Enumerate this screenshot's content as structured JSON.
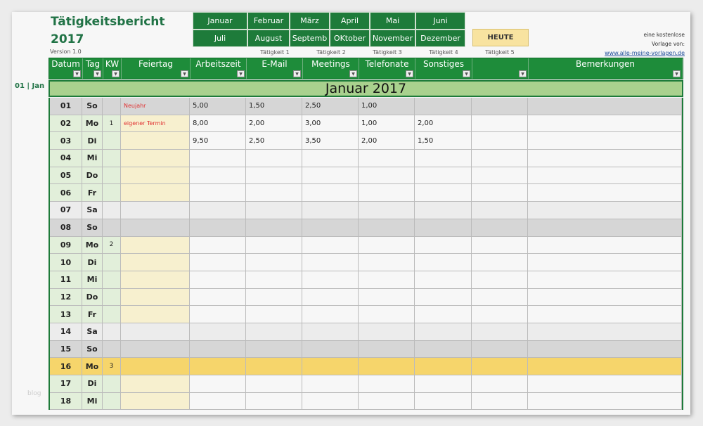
{
  "header": {
    "title_line1": "Tätigkeitsbericht",
    "title_line2": "2017",
    "version": "Version 1.0"
  },
  "months_row1": [
    "Januar",
    "Februar",
    "März",
    "April",
    "Mai",
    "Juni"
  ],
  "months_row2": [
    "Juli",
    "August",
    "Septemb",
    "OKtober",
    "November",
    "Dezember"
  ],
  "today_button": "HEUTE",
  "activity_labels": [
    "Tätigkeit 1",
    "Tätigkeit 2",
    "Tätigkeit 3",
    "Tätigkeit 4",
    "Tätigkeit 5"
  ],
  "promo": {
    "line1": "eine kostenlose",
    "line2": "Vorlage von:",
    "link": "www.alle-meine-vorlagen.de"
  },
  "columns": [
    "Datum",
    "Tag",
    "KW",
    "Feiertag",
    "Arbeitszeit",
    "E-Mail",
    "Meetings",
    "Telefonate",
    "Sonstiges",
    "",
    "Bemerkungen"
  ],
  "month_band": "Januar 2017",
  "month_side_label": "01 | Jan",
  "watermark": "blog",
  "colors": {
    "accent": "#1e7b3a",
    "band": "#a9d18e",
    "today": "#f6d56b",
    "weekday_date": "#e2efda",
    "holiday_col": "#f7f0cf",
    "sunday": "#d6d6d6",
    "saturday": "#ececec"
  },
  "rows": [
    {
      "datum": "01",
      "tag": "So",
      "kw": "",
      "feiertag": "Neujahr",
      "values": [
        "5,00",
        "1,50",
        "2,50",
        "1,00",
        "",
        ""
      ],
      "bem": "",
      "type": "sun"
    },
    {
      "datum": "02",
      "tag": "Mo",
      "kw": "1",
      "feiertag": "eigener Termin",
      "values": [
        "8,00",
        "2,00",
        "3,00",
        "1,00",
        "2,00",
        ""
      ],
      "bem": "",
      "type": "wd"
    },
    {
      "datum": "03",
      "tag": "Di",
      "kw": "",
      "feiertag": "",
      "values": [
        "9,50",
        "2,50",
        "3,50",
        "2,00",
        "1,50",
        ""
      ],
      "bem": "",
      "type": "wd"
    },
    {
      "datum": "04",
      "tag": "Mi",
      "kw": "",
      "feiertag": "",
      "values": [
        "",
        "",
        "",
        "",
        "",
        ""
      ],
      "bem": "",
      "type": "wd"
    },
    {
      "datum": "05",
      "tag": "Do",
      "kw": "",
      "feiertag": "",
      "values": [
        "",
        "",
        "",
        "",
        "",
        ""
      ],
      "bem": "",
      "type": "wd"
    },
    {
      "datum": "06",
      "tag": "Fr",
      "kw": "",
      "feiertag": "",
      "values": [
        "",
        "",
        "",
        "",
        "",
        ""
      ],
      "bem": "",
      "type": "wd"
    },
    {
      "datum": "07",
      "tag": "Sa",
      "kw": "",
      "feiertag": "",
      "values": [
        "",
        "",
        "",
        "",
        "",
        ""
      ],
      "bem": "",
      "type": "sat"
    },
    {
      "datum": "08",
      "tag": "So",
      "kw": "",
      "feiertag": "",
      "values": [
        "",
        "",
        "",
        "",
        "",
        ""
      ],
      "bem": "",
      "type": "sun"
    },
    {
      "datum": "09",
      "tag": "Mo",
      "kw": "2",
      "feiertag": "",
      "values": [
        "",
        "",
        "",
        "",
        "",
        ""
      ],
      "bem": "",
      "type": "wd"
    },
    {
      "datum": "10",
      "tag": "Di",
      "kw": "",
      "feiertag": "",
      "values": [
        "",
        "",
        "",
        "",
        "",
        ""
      ],
      "bem": "",
      "type": "wd"
    },
    {
      "datum": "11",
      "tag": "Mi",
      "kw": "",
      "feiertag": "",
      "values": [
        "",
        "",
        "",
        "",
        "",
        ""
      ],
      "bem": "",
      "type": "wd"
    },
    {
      "datum": "12",
      "tag": "Do",
      "kw": "",
      "feiertag": "",
      "values": [
        "",
        "",
        "",
        "",
        "",
        ""
      ],
      "bem": "",
      "type": "wd"
    },
    {
      "datum": "13",
      "tag": "Fr",
      "kw": "",
      "feiertag": "",
      "values": [
        "",
        "",
        "",
        "",
        "",
        ""
      ],
      "bem": "",
      "type": "wd"
    },
    {
      "datum": "14",
      "tag": "Sa",
      "kw": "",
      "feiertag": "",
      "values": [
        "",
        "",
        "",
        "",
        "",
        ""
      ],
      "bem": "",
      "type": "sat"
    },
    {
      "datum": "15",
      "tag": "So",
      "kw": "",
      "feiertag": "",
      "values": [
        "",
        "",
        "",
        "",
        "",
        ""
      ],
      "bem": "",
      "type": "sun"
    },
    {
      "datum": "16",
      "tag": "Mo",
      "kw": "3",
      "feiertag": "",
      "values": [
        "",
        "",
        "",
        "",
        "",
        ""
      ],
      "bem": "",
      "type": "today"
    },
    {
      "datum": "17",
      "tag": "Di",
      "kw": "",
      "feiertag": "",
      "values": [
        "",
        "",
        "",
        "",
        "",
        ""
      ],
      "bem": "",
      "type": "wd"
    },
    {
      "datum": "18",
      "tag": "Mi",
      "kw": "",
      "feiertag": "",
      "values": [
        "",
        "",
        "",
        "",
        "",
        ""
      ],
      "bem": "",
      "type": "wd"
    }
  ]
}
